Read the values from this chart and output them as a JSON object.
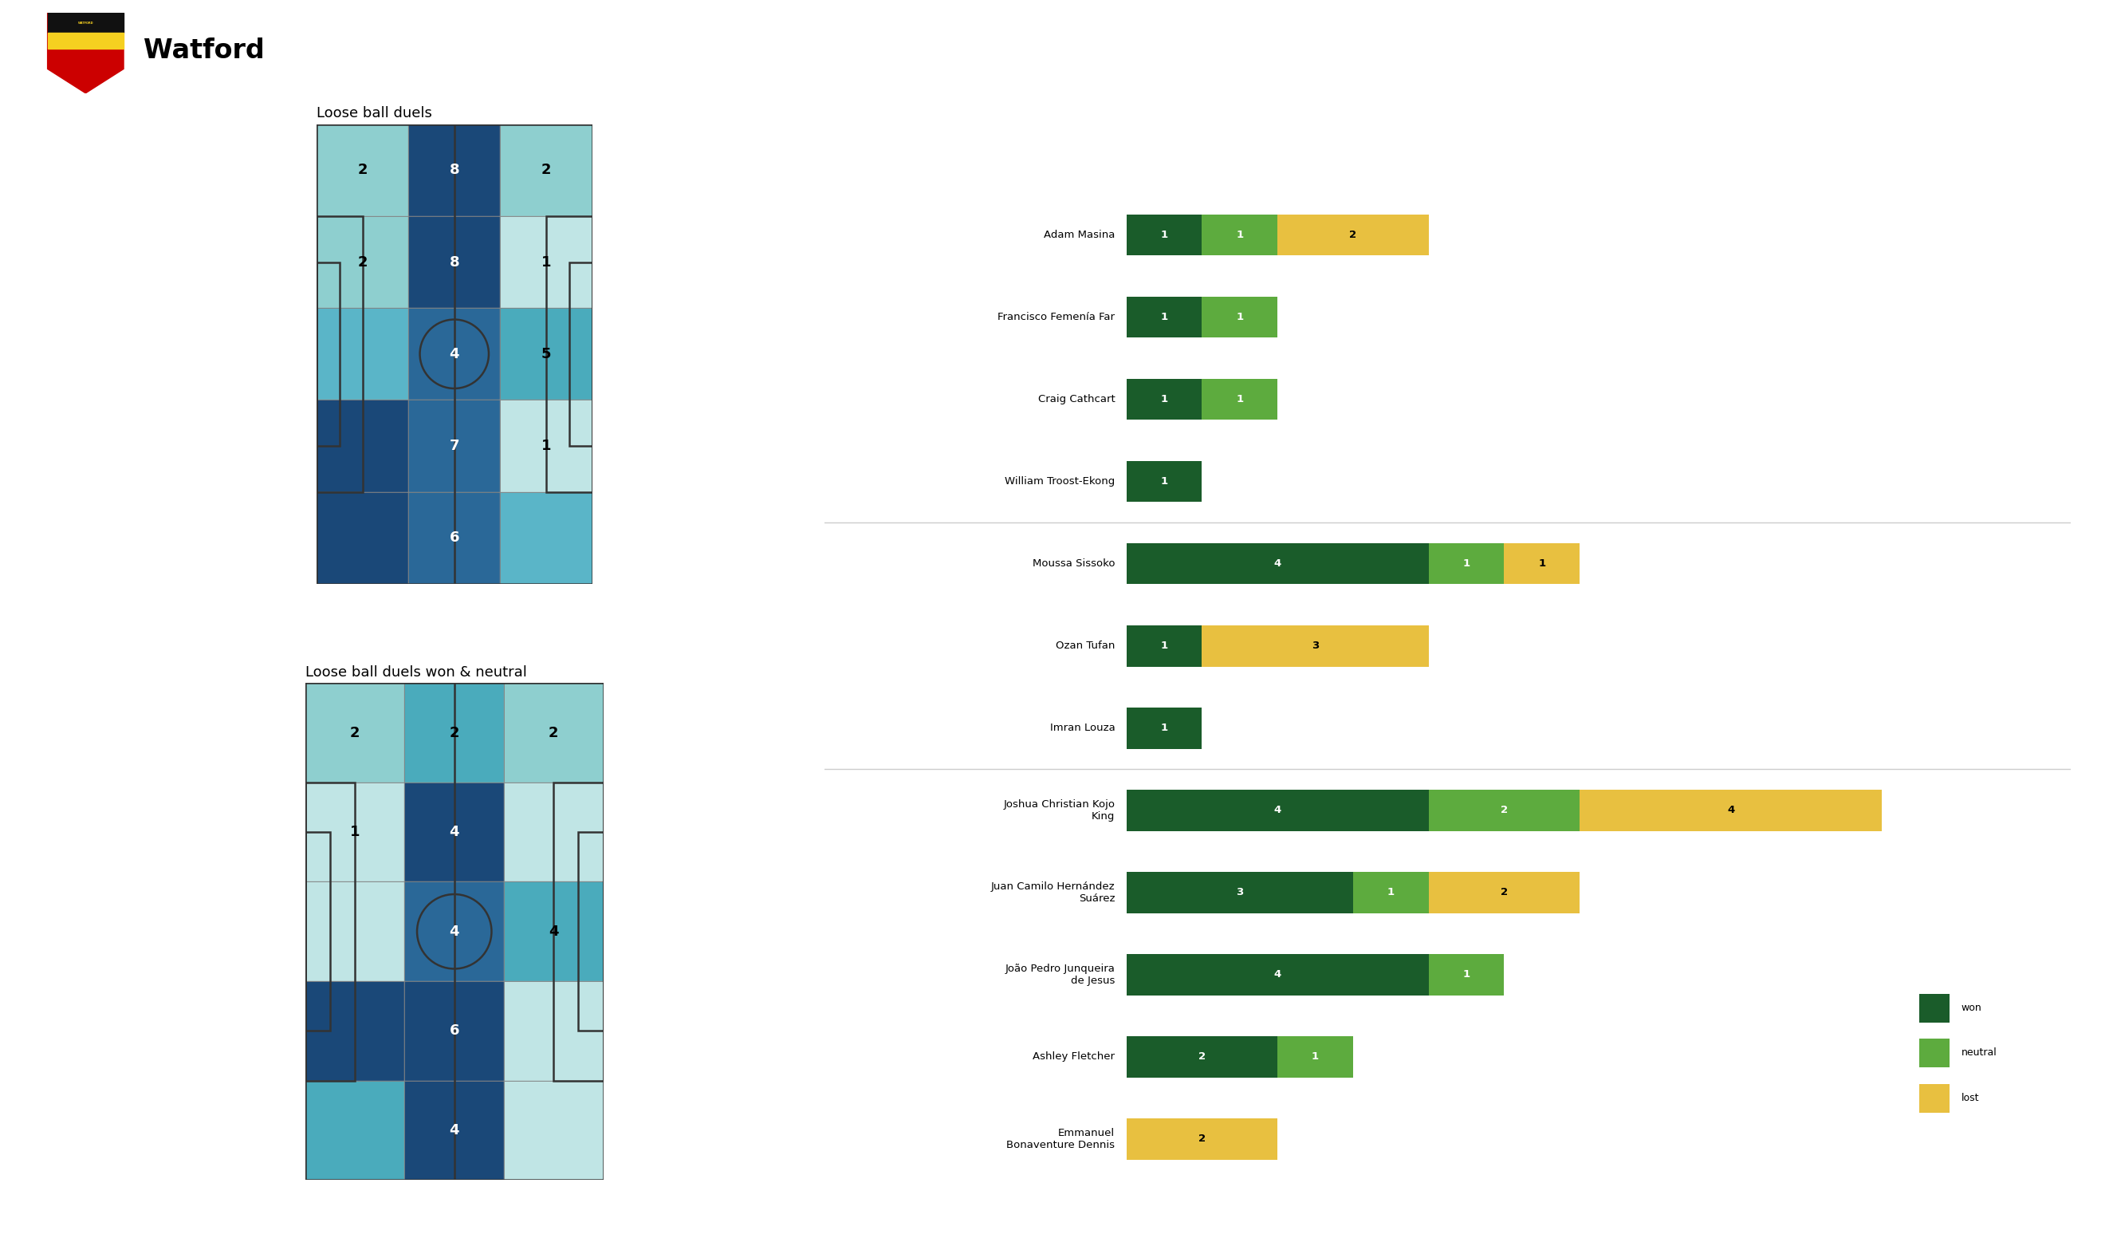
{
  "title": "Watford",
  "subtitle1": "Loose ball duels",
  "subtitle2": "Loose ball duels won & neutral",
  "bg_color": "#ffffff",
  "heatmap1_grid": [
    [
      2,
      8,
      2
    ],
    [
      2,
      8,
      1
    ],
    [
      0,
      4,
      5
    ],
    [
      0,
      7,
      1
    ],
    [
      0,
      6,
      0
    ]
  ],
  "heatmap1_colors": [
    [
      "#8ecfcf",
      "#1a4878",
      "#8ecfcf"
    ],
    [
      "#8ecfcf",
      "#1a4878",
      "#c0e5e5"
    ],
    [
      "#5ab5c8",
      "#2a6898",
      "#4aabbc"
    ],
    [
      "#1a4878",
      "#2a6898",
      "#c0e5e5"
    ],
    [
      "#1a4878",
      "#2a6898",
      "#5ab5c8"
    ]
  ],
  "heatmap2_grid": [
    [
      2,
      2,
      2
    ],
    [
      1,
      4,
      0
    ],
    [
      0,
      4,
      4
    ],
    [
      0,
      6,
      0
    ],
    [
      0,
      4,
      0
    ]
  ],
  "heatmap2_colors": [
    [
      "#8ecfcf",
      "#4aabbc",
      "#8ecfcf"
    ],
    [
      "#c0e5e5",
      "#1a4878",
      "#c0e5e5"
    ],
    [
      "#c0e5e5",
      "#2a6898",
      "#4aabbc"
    ],
    [
      "#1a4878",
      "#1a4878",
      "#c0e5e5"
    ],
    [
      "#4aabbc",
      "#1a4878",
      "#c0e5e5"
    ]
  ],
  "players": [
    {
      "name": "Adam Masina",
      "won": 1,
      "neutral": 1,
      "lost": 2
    },
    {
      "name": "Francisco Femenía Far",
      "won": 1,
      "neutral": 1,
      "lost": 0
    },
    {
      "name": "Craig Cathcart",
      "won": 1,
      "neutral": 1,
      "lost": 0
    },
    {
      "name": "William Troost-Ekong",
      "won": 1,
      "neutral": 0,
      "lost": 0
    },
    {
      "name": "Moussa Sissoko",
      "won": 4,
      "neutral": 1,
      "lost": 1
    },
    {
      "name": "Ozan Tufan",
      "won": 1,
      "neutral": 0,
      "lost": 3
    },
    {
      "name": "Imran Louza",
      "won": 1,
      "neutral": 0,
      "lost": 0
    },
    {
      "name": "Joshua Christian Kojo\nKing",
      "won": 4,
      "neutral": 2,
      "lost": 4
    },
    {
      "name": "Juan Camilo Hernández\nSuárez",
      "won": 3,
      "neutral": 1,
      "lost": 2
    },
    {
      "name": "João Pedro Junqueira\nde Jesus",
      "won": 4,
      "neutral": 1,
      "lost": 0
    },
    {
      "name": "Ashley Fletcher",
      "won": 2,
      "neutral": 1,
      "lost": 0
    },
    {
      "name": "Emmanuel\nBonaventure Dennis",
      "won": 0,
      "neutral": 0,
      "lost": 2
    }
  ],
  "divider_after_indices": [
    3,
    6
  ],
  "color_won": "#1a5c2a",
  "color_neutral": "#5dab3e",
  "color_lost": "#e8c040",
  "pitch_line_color": "#333333",
  "logo_colors": {
    "shield": "#cc0000",
    "yellow": "#f5d020",
    "black": "#000000"
  }
}
